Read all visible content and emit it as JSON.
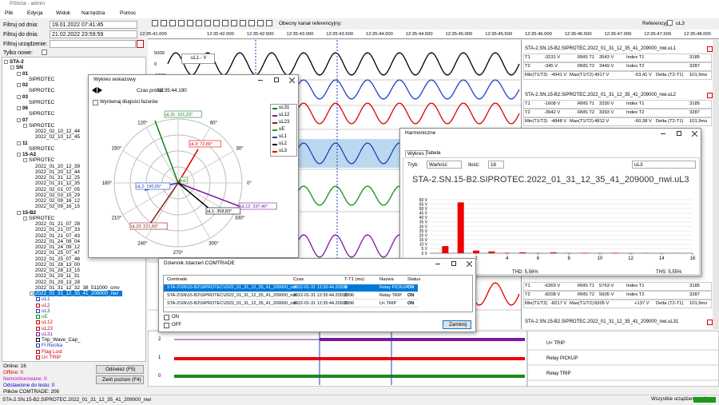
{
  "window": {
    "title": "PSIicta - admin"
  },
  "menu": [
    "Plik",
    "Edycja",
    "Widok",
    "Narzędzia",
    "Pomoc"
  ],
  "filters": {
    "date_from_label": "Filtruj od dnia:",
    "date_from": "19.01.2022 07:41:45",
    "date_to_label": "Filtruj do dnia:",
    "date_to": "21.02.2022 23:59:59",
    "device_label": "Filtruj urządzenie:",
    "new_only_label": "Tylko nowe:"
  },
  "tree": [
    {
      "label": "STA-2",
      "children": [
        {
          "label": "SN",
          "children": [
            {
              "label": "01",
              "children": [
                {
                  "label": "SIPROTEC"
                }
              ]
            },
            {
              "label": "02",
              "children": [
                {
                  "label": "SIPROTEC"
                }
              ]
            },
            {
              "label": "03",
              "children": [
                {
                  "label": "SIPROTEC"
                }
              ]
            },
            {
              "label": "06",
              "children": [
                {
                  "label": "SIPROTEC"
                }
              ]
            },
            {
              "label": "07",
              "children": [
                {
                  "label": "SIPROTEC",
                  "children": [
                    {
                      "label": "2022_02_10_12_44"
                    },
                    {
                      "label": "2022_02_10_12_45"
                    }
                  ]
                }
              ]
            },
            {
              "label": "11",
              "children": [
                {
                  "label": "SIPROTEC"
                }
              ]
            },
            {
              "label": "15-A2",
              "children": [
                {
                  "label": "SIPROTEC",
                  "children": [
                    {
                      "label": "2022_01_20_12_39"
                    },
                    {
                      "label": "2022_01_20_12_44"
                    },
                    {
                      "label": "2022_01_31_12_25"
                    },
                    {
                      "label": "2022_01_31_12_35"
                    },
                    {
                      "label": "2022_02_01_07_05"
                    },
                    {
                      "label": "2022_02_03_15_29"
                    },
                    {
                      "label": "2022_02_09_16_12"
                    },
                    {
                      "label": "2022_02_09_16_15"
                    }
                  ]
                }
              ]
            },
            {
              "label": "15-B2",
              "children": [
                {
                  "label": "SIPROTEC",
                  "children": [
                    {
                      "label": "2022_01_21_07_28"
                    },
                    {
                      "label": "2022_01_21_07_33"
                    },
                    {
                      "label": "2022_01_21_07_43"
                    },
                    {
                      "label": "2022_01_24_09_04"
                    },
                    {
                      "label": "2022_01_24_09_12"
                    },
                    {
                      "label": "2022_01_25_07_47"
                    },
                    {
                      "label": "2022_01_25_07_48"
                    },
                    {
                      "label": "2022_01_28_13_00"
                    },
                    {
                      "label": "2022_01_28_13_15"
                    },
                    {
                      "label": "2022_01_29_11_31"
                    },
                    {
                      "label": "2022_01_29_13_28"
                    },
                    {
                      "label": "2022_01_31_12_32_38_511000_cmv"
                    },
                    {
                      "label": "2022_01_31_12_35_41_209000_nwi",
                      "selected": true,
                      "children": [
                        {
                          "label": "uL1",
                          "color": "#1f3fbf"
                        },
                        {
                          "label": "uL2",
                          "color": "#cc0000"
                        },
                        {
                          "label": "uL3",
                          "color": "#1f3fbf"
                        },
                        {
                          "label": "uE",
                          "color": "#1a8a1a"
                        },
                        {
                          "label": "uL12",
                          "color": "#cc0000"
                        },
                        {
                          "label": "uL23",
                          "color": "#cc0000"
                        },
                        {
                          "label": "uL31",
                          "color": "#7a1a9a"
                        },
                        {
                          "label": "Trip_Wave_Cap_",
                          "color": "#000000"
                        },
                        {
                          "label": "Fl Reclka",
                          "color": "#1f3fbf"
                        },
                        {
                          "label": "Flag Lost",
                          "color": "#cc0000"
                        },
                        {
                          "label": "U< TRIP",
                          "color": "#cc0000"
                        }
                      ]
                    }
                  ]
                }
              ]
            }
          ]
        }
      ]
    }
  ],
  "summary": {
    "online": "Online: 16",
    "offline": "Offline: 0",
    "unmonitored": "Nemonitorowane: 0",
    "testing": "Odstawione do testu: 0",
    "files": "Plików COMTRADE: 206"
  },
  "buttons": {
    "refresh": "Odświez (F5)",
    "collapse": "Zwiń poziom (F4)"
  },
  "toolbar": {
    "reference_channel_label": "Obecny kanał referencyjny:",
    "reference_label": "Referencyjny",
    "reference_value": "uL3"
  },
  "time_axis": [
    "12:35:41.000",
    "12:35:42.000",
    "12:35:42.500",
    "12:35:43.000",
    "12:35:43.500",
    "12:35:44.000",
    "12:35:44.500",
    "12:35:45.000",
    "12:35:45.500",
    "12:35:46.000",
    "12:35:46.500",
    "12:35:47.000",
    "12:35:47.500",
    "12:35:48.000"
  ],
  "waveform": {
    "legend": "uL1 - V",
    "yticks": [
      "5000",
      "0",
      "-5000"
    ]
  },
  "measurements": [
    {
      "title": "STA-2.SN.15-B2.SIPROTEC.2022_01_31_12_35_41_209000_nwi.uL1",
      "rows": [
        [
          "T1",
          "-3231 V",
          "RMS T1",
          "3543 V",
          "Index T1",
          "3185"
        ],
        [
          "T2",
          "-345 V",
          "RMS T2",
          "3449 V",
          "Index T2",
          "3287"
        ],
        [
          "Min(T1/T2)",
          "-4941 V",
          "Max(T1/T2)",
          "4917 V",
          "-63,41 V",
          "Delta (T2-T1)",
          "101,9ms"
        ]
      ]
    },
    {
      "title": "STA-2.SN.15-B2.SIPROTEC.2022_01_31_12_35_41_209000_nwi.uL2",
      "rows": [
        [
          "T1",
          "-1608 V",
          "RMS T1",
          "3330 V",
          "Index T1",
          "3185"
        ],
        [
          "T2",
          "-3942 V",
          "RMS T2",
          "3393 V",
          "Index T2",
          "3287"
        ],
        [
          "Min(T1/T2)",
          "-4848 V",
          "Max(T1/T2)",
          "4812 V",
          "-60,38 V",
          "Delta (T2-T1)",
          "101,9ms"
        ]
      ]
    },
    {
      "rows": [
        [
          "T1",
          "-6369 V",
          "RMS T1",
          "5763 V",
          "Index T1",
          "3185"
        ],
        [
          "T2",
          "-8208 V",
          "RMS T2",
          "5605 V",
          "Index T2",
          "3287"
        ],
        [
          "Min(T1/T2)",
          "-8217 V",
          "Max(T1/T2)",
          "8205 V",
          "+137 V",
          "Delta (T2-T1)",
          "101,9ms"
        ]
      ]
    },
    {
      "title": "STA-2.SN.15-B2.SIPROTEC.2022_01_31_12_35_41_209000_nwi.uL31"
    }
  ],
  "phasor_window": {
    "title": "Wykres wskazowy",
    "time_label": "Czas próbki:",
    "time": "12:35:44.190",
    "align_label": "Wyrównaj długości fazorów",
    "angles": [
      "90°",
      "60°",
      "30°",
      "0°",
      "330°",
      "300°",
      "270°",
      "240°",
      "210°",
      "180°",
      "150°",
      "120°"
    ],
    "legend": [
      {
        "name": "uL31",
        "color": "#1a7a1a"
      },
      {
        "name": "uL12",
        "color": "#7a1a9a"
      },
      {
        "name": "uL23",
        "color": "#8b1a1a"
      },
      {
        "name": "uE",
        "color": "#1aa01a"
      },
      {
        "name": "uL1",
        "color": "#1f3fbf"
      },
      {
        "name": "uL2",
        "color": "#000000"
      },
      {
        "name": "uL3",
        "color": "#dd0000"
      }
    ],
    "phasors": [
      {
        "label": "uL31: 101,23°",
        "color": "#1a7a1a"
      },
      {
        "label": "uL3: 72,80°",
        "color": "#dd0000"
      },
      {
        "label": "uE",
        "color": "#1aa01a"
      },
      {
        "label": "uL2: 190,65°",
        "color": "#1f3fbf"
      },
      {
        "label": "uL12: 337,40°",
        "color": "#7a1a9a"
      },
      {
        "label": "uL1: 358,83°",
        "color": "#000000"
      },
      {
        "label": "uL23: 221,83°",
        "color": "#8b1a1a"
      }
    ]
  },
  "harmonics_window": {
    "title": "Harmoniczne",
    "tabs": [
      "Wykres",
      "Tabela"
    ],
    "mode_label": "Tryb:",
    "mode": "Wartość",
    "count_label": "Ilość:",
    "count": "16",
    "channel": "uL3",
    "chart": {
      "type": "bar",
      "title": "STA-2.SN.15-B2.SIPROTEC.2022_01_31_12_35_41_209000_nwi.uL3",
      "color": "#ee0000",
      "x": [
        0,
        1,
        2,
        3,
        4,
        5,
        6,
        7,
        8,
        9,
        10,
        11,
        12,
        13,
        14,
        15
      ],
      "values": [
        8,
        57,
        3,
        2,
        0.5,
        1,
        0.3,
        1,
        0.3,
        0.5,
        0.2,
        0.5,
        0.2,
        0.3,
        0.2,
        0.2
      ],
      "xlim": [
        -1,
        16
      ],
      "ylim": [
        0,
        60
      ],
      "xticks": [
        2,
        4,
        6,
        8,
        10,
        12,
        14,
        16
      ],
      "yticks": [
        {
          "value": 0,
          "label": "0 V"
        },
        {
          "value": 5,
          "label": "5 V"
        },
        {
          "value": 10,
          "label": "10 V"
        },
        {
          "value": 15,
          "label": "15 V"
        },
        {
          "value": 20,
          "label": "20 V"
        },
        {
          "value": 25,
          "label": "25 V"
        },
        {
          "value": 30,
          "label": "30 V"
        },
        {
          "value": 35,
          "label": "35 V"
        },
        {
          "value": 40,
          "label": "40 V"
        },
        {
          "value": 45,
          "label": "45 V"
        },
        {
          "value": 50,
          "label": "50 V"
        },
        {
          "value": 55,
          "label": "55 V"
        },
        {
          "value": 60,
          "label": "60 V"
        }
      ],
      "grid": true
    },
    "thd": "THD: 5,56%",
    "ths": "THS: 5,55%"
  },
  "comtrade_log": {
    "title": "Dziennik zdarzeń COMTRADE",
    "headers": [
      "Comtrade",
      "Czas",
      "T-T1 (ms)",
      "Nazwa",
      "Status"
    ],
    "rows": [
      [
        "STA-2\\SN\\15-B2\\SIPROTEC\\2022_01_31_12_35_41_209000_nwi",
        "2022-01-31 12:35:44.20500",
        "0",
        "Relay PICKUP",
        "ON"
      ],
      [
        "STA-2\\SN\\15-B2\\SIPROTEC\\2022_01_31_12_35_41_209000_nwi",
        "2022-01-31 12:35:44.20500",
        "2996",
        "Relay TRIP",
        "ON"
      ],
      [
        "STA-2\\SN\\15-B2\\SIPROTEC\\2022_01_31_12_35_41_209000_nwi",
        "2022-01-31 12:35:44.20500",
        "2996",
        "U< TRIP",
        "ON"
      ]
    ],
    "checkboxes": [
      "ON",
      "OFF"
    ],
    "close": "Zamknij"
  },
  "digital": {
    "yticks": [
      "2",
      "1",
      "0"
    ],
    "channels": [
      "U< TRIP",
      "Relay PICKUP",
      "Relay TRIP"
    ]
  },
  "status_bar": {
    "file": "STA-2.SN.15-B2.SIPROTEC.2022_01_31_12_35_41_209000_nwi",
    "state": "Wszystkie urządzenia online"
  }
}
